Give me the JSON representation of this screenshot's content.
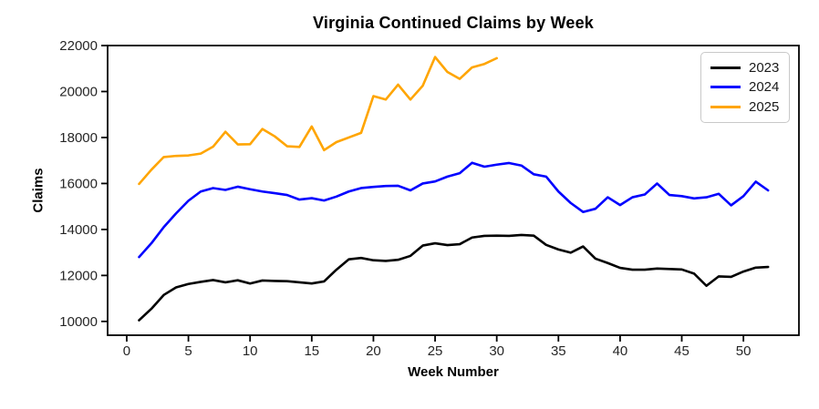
{
  "chart_data": {
    "type": "line",
    "title": "Virginia Continued Claims by Week",
    "xlabel": "Week Number",
    "ylabel": "Claims",
    "xlim": [
      -1.55,
      54.5
    ],
    "ylim": [
      9400,
      22000
    ],
    "xticks": [
      0,
      5,
      10,
      15,
      20,
      25,
      30,
      35,
      40,
      45,
      50
    ],
    "yticks": [
      10000,
      12000,
      14000,
      16000,
      18000,
      20000,
      22000
    ],
    "grid": false,
    "legend_position": "upper right",
    "x_start_week": 1,
    "series": [
      {
        "name": "2023",
        "color": "#000000",
        "values": [
          10050,
          10550,
          11150,
          11480,
          11630,
          11720,
          11800,
          11700,
          11790,
          11650,
          11780,
          11760,
          11750,
          11700,
          11650,
          11740,
          12250,
          12700,
          12760,
          12660,
          12630,
          12680,
          12850,
          13300,
          13400,
          13320,
          13360,
          13650,
          13720,
          13730,
          13720,
          13760,
          13730,
          13330,
          13130,
          12990,
          13260,
          12730,
          12540,
          12330,
          12250,
          12250,
          12300,
          12280,
          12260,
          12080,
          11550,
          11960,
          11940,
          12170,
          12340,
          12370
        ]
      },
      {
        "name": "2024",
        "color": "#0000ff",
        "values": [
          12800,
          13400,
          14100,
          14700,
          15250,
          15650,
          15800,
          15720,
          15860,
          15750,
          15650,
          15580,
          15500,
          15300,
          15360,
          15260,
          15430,
          15650,
          15800,
          15850,
          15890,
          15900,
          15700,
          16000,
          16090,
          16300,
          16450,
          16900,
          16730,
          16820,
          16890,
          16780,
          16400,
          16300,
          15650,
          15150,
          14760,
          14900,
          15400,
          15060,
          15400,
          15520,
          16000,
          15500,
          15450,
          15350,
          15400,
          15550,
          15050,
          15450,
          16080,
          15700
        ]
      },
      {
        "name": "2025",
        "color": "#ffa500",
        "values": [
          15980,
          16600,
          17150,
          17200,
          17220,
          17300,
          17600,
          18250,
          17700,
          17710,
          18370,
          18050,
          17620,
          17590,
          18480,
          17450,
          17800,
          18000,
          18200,
          19800,
          19650,
          20300,
          19650,
          20250,
          21500,
          20850,
          20550,
          21050,
          21200,
          21450
        ]
      }
    ]
  }
}
